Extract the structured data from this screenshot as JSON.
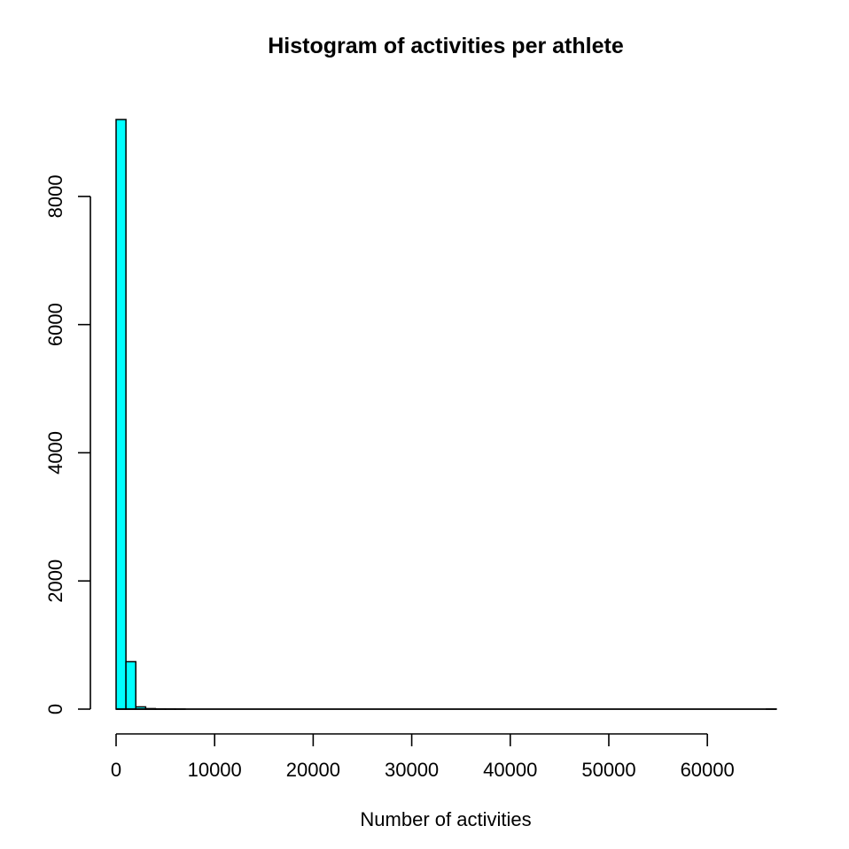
{
  "chart_data": {
    "type": "bar",
    "title": "Histogram of activities per athlete",
    "xlabel": "Number of activities",
    "ylabel": "",
    "bar_color": "#00ffff",
    "bins": [
      {
        "start": 0,
        "end": 1000,
        "count": 9200
      },
      {
        "start": 1000,
        "end": 2000,
        "count": 740
      },
      {
        "start": 2000,
        "end": 3000,
        "count": 35
      },
      {
        "start": 3000,
        "end": 4000,
        "count": 8
      },
      {
        "start": 4000,
        "end": 5000,
        "count": 3
      },
      {
        "start": 5000,
        "end": 6000,
        "count": 2
      },
      {
        "start": 6000,
        "end": 7000,
        "count": 1
      },
      {
        "start": 66000,
        "end": 67000,
        "count": 1
      }
    ],
    "xlim": [
      0,
      67000
    ],
    "ylim": [
      0,
      9200
    ],
    "x_ticks": [
      0,
      10000,
      20000,
      30000,
      40000,
      50000,
      60000
    ],
    "x_tick_labels": [
      "0",
      "10000",
      "20000",
      "30000",
      "40000",
      "50000",
      "60000"
    ],
    "y_ticks": [
      0,
      2000,
      4000,
      6000,
      8000
    ],
    "y_tick_labels": [
      "0",
      "2000",
      "4000",
      "6000",
      "8000"
    ],
    "grid": false,
    "legend": "none"
  }
}
